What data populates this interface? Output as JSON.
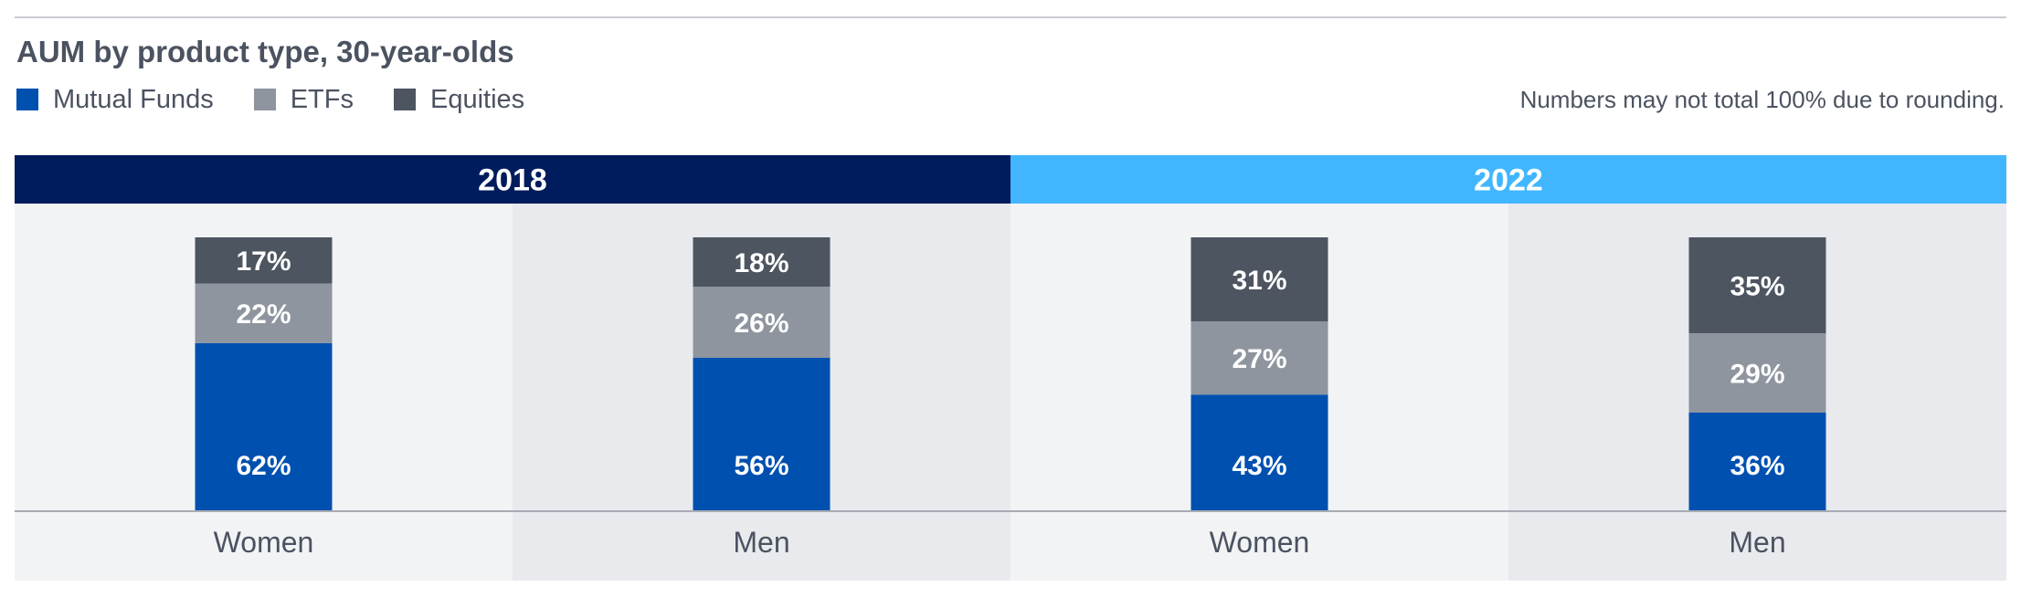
{
  "title": "AUM by product type, 30-year-olds",
  "note": "Numbers may not total 100% due to rounding.",
  "legend": [
    {
      "label": "Mutual Funds",
      "color": "#0050b0"
    },
    {
      "label": "ETFs",
      "color": "#8e959e"
    },
    {
      "label": "Equities",
      "color": "#4d5560"
    }
  ],
  "colors": {
    "year_2018": "#001c5c",
    "year_2022": "#41b6ff",
    "panel_light": "#f2f3f5",
    "panel_dark": "#e8eaee"
  },
  "chart_data": {
    "type": "bar",
    "stacked": true,
    "unit": "%",
    "groups": [
      {
        "label": "2018",
        "categories": [
          {
            "label": "Women",
            "values": {
              "Mutual Funds": 62,
              "ETFs": 22,
              "Equities": 17
            }
          },
          {
            "label": "Men",
            "values": {
              "Mutual Funds": 56,
              "ETFs": 26,
              "Equities": 18
            }
          }
        ]
      },
      {
        "label": "2022",
        "categories": [
          {
            "label": "Women",
            "values": {
              "Mutual Funds": 43,
              "ETFs": 27,
              "Equities": 31
            }
          },
          {
            "label": "Men",
            "values": {
              "Mutual Funds": 36,
              "ETFs": 29,
              "Equities": 35
            }
          }
        ]
      }
    ],
    "series": [
      "Mutual Funds",
      "ETFs",
      "Equities"
    ]
  }
}
